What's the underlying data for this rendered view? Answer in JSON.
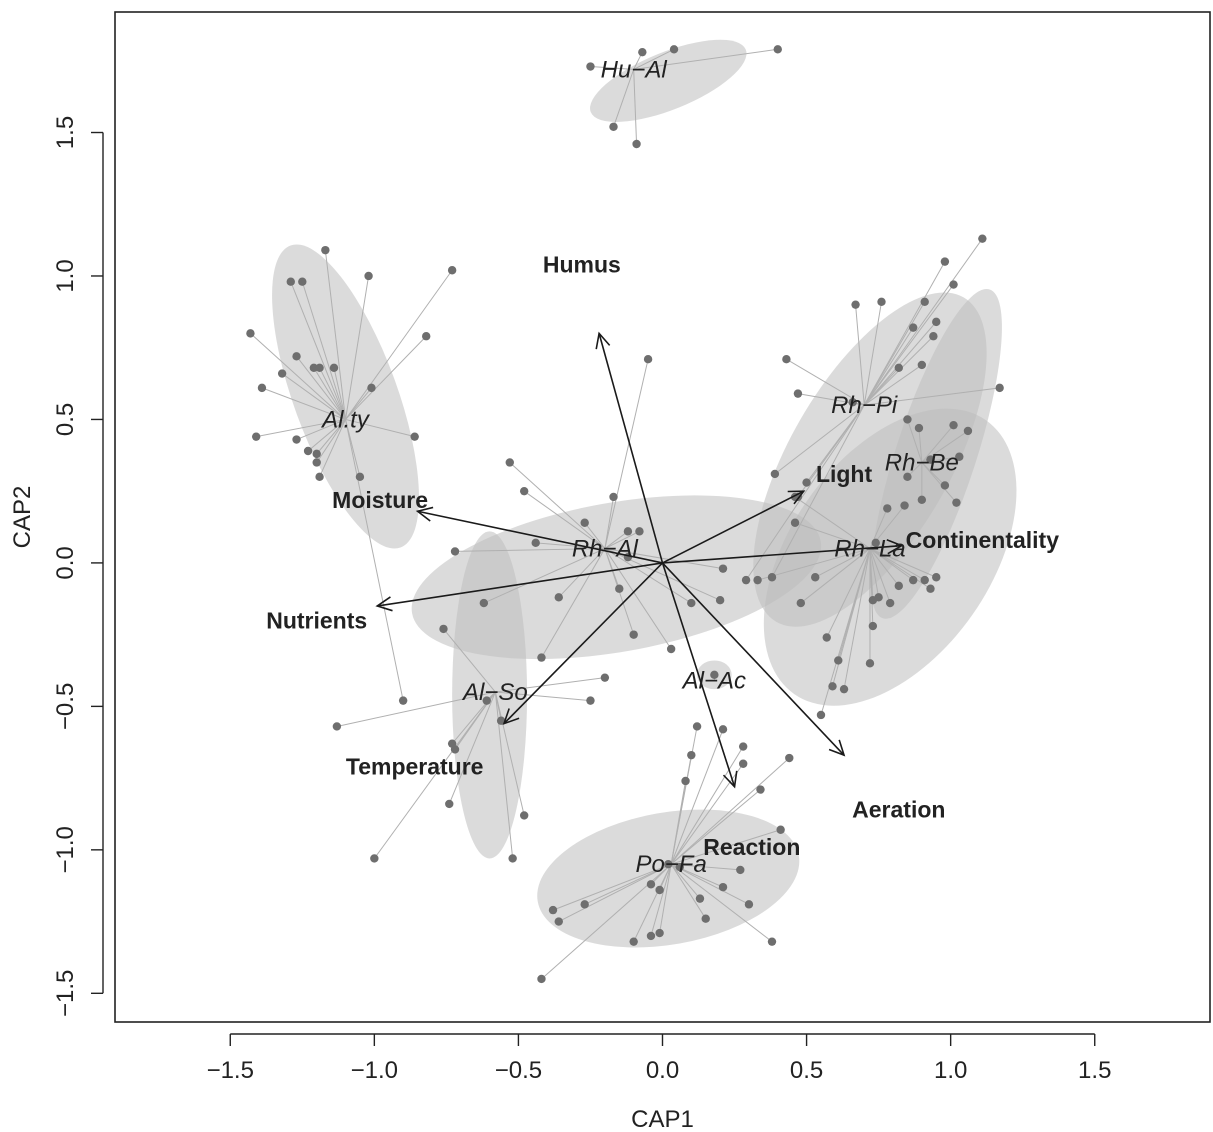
{
  "chart_data": {
    "type": "scatter",
    "xlabel": "CAP1",
    "ylabel": "CAP2",
    "xlim": [
      -1.9,
      1.9
    ],
    "ylim": [
      -1.6,
      1.92
    ],
    "x_ticks": [
      -1.5,
      -1.0,
      -0.5,
      0.0,
      0.5,
      1.0,
      1.5
    ],
    "y_ticks": [
      -1.5,
      -1.0,
      -0.5,
      0.0,
      0.5,
      1.0,
      1.5
    ],
    "x_tick_labels": [
      "−1.5",
      "−1.0",
      "−0.5",
      "0.0",
      "0.5",
      "1.0",
      "1.5"
    ],
    "y_tick_labels": [
      "−1.5",
      "−1.0",
      "−0.5",
      "0.0",
      "0.5",
      "1.0",
      "1.5"
    ],
    "colors": {
      "point": "#6e6e6e",
      "ellipse": "#bdbdbd",
      "spider": "#b0b0b0",
      "arrow": "#1a1a1a"
    },
    "groups": [
      {
        "name": "Hu−Al",
        "centroid": [
          -0.1,
          1.72
        ],
        "ellipse": {
          "center": [
            0.02,
            1.68
          ],
          "rx": 0.29,
          "ry": 0.1,
          "angle": 22
        },
        "points": [
          [
            -0.25,
            1.73
          ],
          [
            -0.07,
            1.78
          ],
          [
            0.04,
            1.79
          ],
          [
            0.4,
            1.79
          ],
          [
            -0.17,
            1.52
          ],
          [
            -0.09,
            1.46
          ]
        ]
      },
      {
        "name": "Al.ty",
        "centroid": [
          -1.1,
          0.5
        ],
        "ellipse": {
          "center": [
            -1.1,
            0.58
          ],
          "rx": 0.18,
          "ry": 0.56,
          "angle": 20
        },
        "points": [
          [
            -1.43,
            0.8
          ],
          [
            -1.41,
            0.44
          ],
          [
            -1.39,
            0.61
          ],
          [
            -1.29,
            0.98
          ],
          [
            -1.25,
            0.98
          ],
          [
            -1.32,
            0.66
          ],
          [
            -1.27,
            0.72
          ],
          [
            -1.21,
            0.68
          ],
          [
            -1.19,
            0.68
          ],
          [
            -1.14,
            0.68
          ],
          [
            -1.27,
            0.43
          ],
          [
            -1.23,
            0.39
          ],
          [
            -1.2,
            0.38
          ],
          [
            -1.2,
            0.35
          ],
          [
            -1.19,
            0.3
          ],
          [
            -1.17,
            1.09
          ],
          [
            -1.02,
            1.0
          ],
          [
            -0.73,
            1.02
          ],
          [
            -1.01,
            0.61
          ],
          [
            -0.82,
            0.79
          ],
          [
            -0.86,
            0.44
          ],
          [
            -1.05,
            0.3
          ],
          [
            -0.9,
            -0.48
          ]
        ]
      },
      {
        "name": "Rh−Al",
        "centroid": [
          -0.2,
          0.05
        ],
        "ellipse": {
          "center": [
            -0.16,
            -0.05
          ],
          "rx": 0.72,
          "ry": 0.26,
          "angle": 10
        },
        "points": [
          [
            -0.72,
            0.04
          ],
          [
            -0.62,
            -0.14
          ],
          [
            -0.53,
            0.35
          ],
          [
            -0.48,
            0.25
          ],
          [
            -0.44,
            0.07
          ],
          [
            -0.36,
            -0.12
          ],
          [
            -0.27,
            0.14
          ],
          [
            -0.17,
            0.23
          ],
          [
            -0.12,
            0.11
          ],
          [
            -0.08,
            0.11
          ],
          [
            -0.12,
            0.02
          ],
          [
            -0.15,
            -0.09
          ],
          [
            -0.1,
            -0.25
          ],
          [
            -0.05,
            0.71
          ],
          [
            0.03,
            -0.3
          ],
          [
            0.1,
            -0.14
          ],
          [
            0.21,
            -0.02
          ],
          [
            0.2,
            -0.13
          ],
          [
            -0.42,
            -0.33
          ]
        ]
      },
      {
        "name": "Rh−Pi",
        "centroid": [
          0.7,
          0.55
        ],
        "ellipse": {
          "center": [
            0.72,
            0.36
          ],
          "rx": 0.65,
          "ry": 0.28,
          "angle": 60
        },
        "points": [
          [
            0.47,
            0.59
          ],
          [
            0.66,
            0.56
          ],
          [
            0.76,
            0.91
          ],
          [
            0.67,
            0.9
          ],
          [
            0.82,
            0.68
          ],
          [
            0.91,
            0.91
          ],
          [
            0.95,
            0.84
          ],
          [
            0.98,
            1.05
          ],
          [
            1.01,
            0.97
          ],
          [
            1.11,
            1.13
          ],
          [
            0.94,
            0.79
          ],
          [
            0.87,
            0.82
          ],
          [
            0.9,
            0.69
          ],
          [
            1.17,
            0.61
          ],
          [
            0.39,
            0.31
          ],
          [
            0.47,
            0.23
          ],
          [
            0.5,
            0.28
          ],
          [
            0.43,
            0.71
          ],
          [
            0.38,
            -0.05
          ],
          [
            0.29,
            -0.06
          ]
        ]
      },
      {
        "name": "Rh−Be",
        "centroid": [
          0.9,
          0.35
        ],
        "ellipse": {
          "center": [
            0.95,
            0.38
          ],
          "rx": 0.6,
          "ry": 0.14,
          "angle": 72
        },
        "points": [
          [
            0.85,
            0.5
          ],
          [
            0.89,
            0.47
          ],
          [
            1.01,
            0.48
          ],
          [
            1.03,
            0.37
          ],
          [
            0.93,
            0.36
          ],
          [
            1.06,
            0.46
          ],
          [
            0.98,
            0.27
          ],
          [
            1.02,
            0.21
          ],
          [
            0.9,
            0.22
          ],
          [
            0.85,
            0.3
          ]
        ]
      },
      {
        "name": "Rh−La",
        "centroid": [
          0.72,
          0.05
        ],
        "ellipse": {
          "center": [
            0.79,
            0.02
          ],
          "rx": 0.58,
          "ry": 0.35,
          "angle": 55
        },
        "points": [
          [
            0.46,
            0.23
          ],
          [
            0.46,
            0.14
          ],
          [
            0.53,
            -0.05
          ],
          [
            0.33,
            -0.06
          ],
          [
            0.48,
            -0.14
          ],
          [
            0.57,
            -0.26
          ],
          [
            0.61,
            -0.34
          ],
          [
            0.55,
            -0.53
          ],
          [
            0.59,
            -0.43
          ],
          [
            0.63,
            -0.44
          ],
          [
            0.72,
            -0.35
          ],
          [
            0.73,
            -0.22
          ],
          [
            0.73,
            -0.13
          ],
          [
            0.75,
            -0.12
          ],
          [
            0.79,
            -0.14
          ],
          [
            0.82,
            -0.08
          ],
          [
            0.87,
            -0.06
          ],
          [
            0.93,
            -0.09
          ],
          [
            0.95,
            -0.05
          ],
          [
            0.91,
            -0.06
          ],
          [
            0.74,
            0.07
          ],
          [
            0.84,
            0.2
          ],
          [
            0.78,
            0.19
          ]
        ]
      },
      {
        "name": "Al−Ac",
        "centroid": [
          0.18,
          -0.41
        ],
        "ellipse": {
          "center": [
            0.18,
            -0.39
          ],
          "rx": 0.06,
          "ry": 0.05,
          "angle": 0
        },
        "points": [
          [
            0.18,
            -0.39
          ]
        ]
      },
      {
        "name": "Al−So",
        "centroid": [
          -0.58,
          -0.45
        ],
        "ellipse": {
          "center": [
            -0.6,
            -0.46
          ],
          "rx": 0.13,
          "ry": 0.57,
          "angle": 0
        },
        "points": [
          [
            -0.76,
            -0.23
          ],
          [
            -0.73,
            -0.63
          ],
          [
            -0.72,
            -0.65
          ],
          [
            -0.74,
            -0.84
          ],
          [
            -0.61,
            -0.48
          ],
          [
            -0.56,
            -0.55
          ],
          [
            -0.48,
            -0.88
          ],
          [
            -0.52,
            -1.03
          ],
          [
            -1.13,
            -0.57
          ],
          [
            -1.0,
            -1.03
          ],
          [
            -0.25,
            -0.48
          ],
          [
            -0.2,
            -0.4
          ]
        ]
      },
      {
        "name": "Po−Fa",
        "centroid": [
          0.03,
          -1.05
        ],
        "ellipse": {
          "center": [
            0.02,
            -1.1
          ],
          "rx": 0.46,
          "ry": 0.23,
          "angle": 10
        },
        "points": [
          [
            -0.38,
            -1.21
          ],
          [
            -0.36,
            -1.25
          ],
          [
            -0.27,
            -1.19
          ],
          [
            -0.1,
            -1.32
          ],
          [
            -0.04,
            -1.3
          ],
          [
            -0.01,
            -1.29
          ],
          [
            -0.04,
            -1.12
          ],
          [
            -0.01,
            -1.14
          ],
          [
            0.02,
            -1.05
          ],
          [
            0.06,
            -1.06
          ],
          [
            0.13,
            -1.17
          ],
          [
            0.15,
            -1.24
          ],
          [
            0.21,
            -1.13
          ],
          [
            0.27,
            -1.07
          ],
          [
            0.3,
            -1.19
          ],
          [
            0.38,
            -1.32
          ],
          [
            0.41,
            -0.93
          ],
          [
            0.34,
            -0.79
          ],
          [
            0.28,
            -0.7
          ],
          [
            0.28,
            -0.64
          ],
          [
            0.44,
            -0.68
          ],
          [
            0.21,
            -0.58
          ],
          [
            0.08,
            -0.76
          ],
          [
            0.1,
            -0.67
          ],
          [
            0.12,
            -0.57
          ],
          [
            -0.42,
            -1.45
          ]
        ]
      }
    ],
    "vectors": [
      {
        "name": "Humus",
        "end": [
          -0.22,
          0.8
        ],
        "label_pos": [
          -0.28,
          1.04
        ]
      },
      {
        "name": "Moisture",
        "end": [
          -0.85,
          0.18
        ],
        "label_pos": [
          -0.98,
          0.22
        ]
      },
      {
        "name": "Nutrients",
        "end": [
          -0.99,
          -0.15
        ],
        "label_pos": [
          -1.2,
          -0.2
        ]
      },
      {
        "name": "Temperature",
        "end": [
          -0.55,
          -0.56
        ],
        "label_pos": [
          -0.86,
          -0.71
        ]
      },
      {
        "name": "Light",
        "end": [
          0.49,
          0.25
        ],
        "label_pos": [
          0.63,
          0.31
        ]
      },
      {
        "name": "Continentality",
        "end": [
          0.83,
          0.06
        ],
        "label_pos": [
          1.11,
          0.08
        ]
      },
      {
        "name": "Aeration",
        "end": [
          0.63,
          -0.67
        ],
        "label_pos": [
          0.82,
          -0.86
        ]
      },
      {
        "name": "Reaction",
        "end": [
          0.25,
          -0.78
        ],
        "label_pos": [
          0.31,
          -0.99
        ]
      }
    ]
  }
}
